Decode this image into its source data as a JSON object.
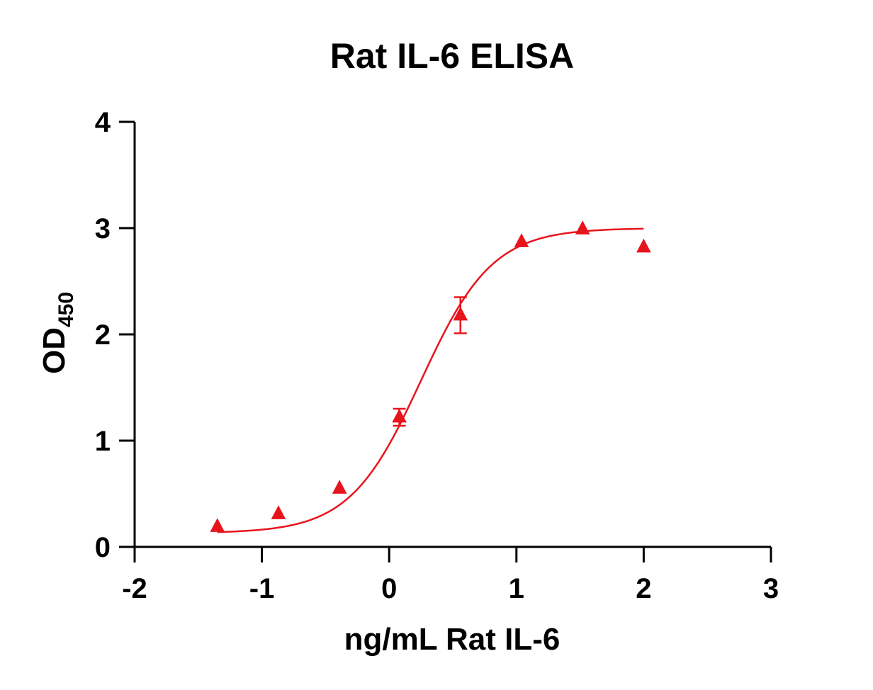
{
  "chart_data": {
    "type": "scatter",
    "title": "Rat IL-6  ELISA",
    "xlabel": "ng/mL Rat IL-6",
    "ylabel_main": "OD",
    "ylabel_sub": "450",
    "xlim": [
      -2,
      3
    ],
    "ylim": [
      0,
      4
    ],
    "x_ticks": [
      "-2",
      "-1",
      "0",
      "1",
      "2",
      "3"
    ],
    "y_ticks": [
      "0",
      "1",
      "2",
      "3",
      "4"
    ],
    "grid": false,
    "series": [
      {
        "color": "#e8141c",
        "marker": "triangle",
        "points": [
          {
            "x": -1.35,
            "y": 0.19,
            "err": 0
          },
          {
            "x": -0.87,
            "y": 0.31,
            "err": 0
          },
          {
            "x": -0.39,
            "y": 0.55,
            "err": 0
          },
          {
            "x": 0.08,
            "y": 1.22,
            "err": 0.08
          },
          {
            "x": 0.56,
            "y": 2.18,
            "err": 0.17
          },
          {
            "x": 1.04,
            "y": 2.87,
            "err": 0
          },
          {
            "x": 1.52,
            "y": 2.99,
            "err": 0
          },
          {
            "x": 2.0,
            "y": 2.82,
            "err": 0
          }
        ],
        "fit": {
          "type": "4PL",
          "bottom": 0.13,
          "top": 3.0,
          "logEC50": 0.25,
          "hill": 1.55,
          "x_range": [
            -1.35,
            2.0
          ]
        }
      }
    ]
  }
}
